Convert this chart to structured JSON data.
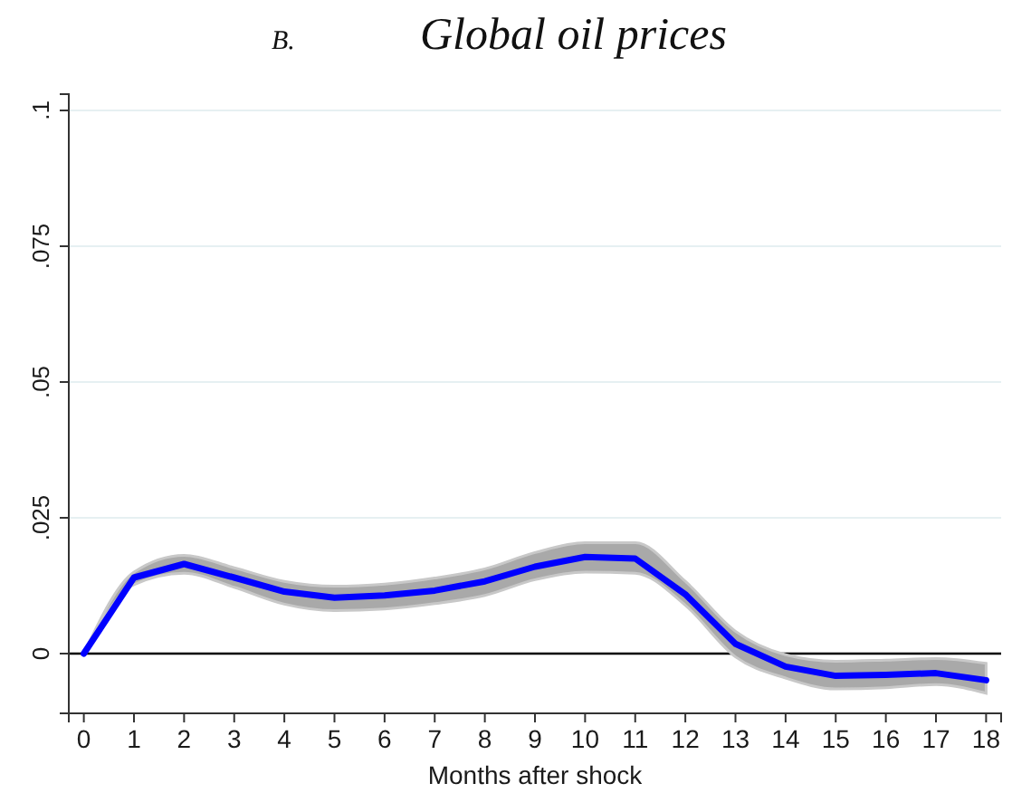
{
  "chart_data": {
    "type": "line",
    "title": "B. Global oil prices",
    "xlabel": "Months after shock",
    "x": [
      0,
      1,
      2,
      3,
      4,
      5,
      6,
      7,
      8,
      9,
      10,
      11,
      12,
      13,
      14,
      15,
      16,
      17,
      18
    ],
    "series": [
      {
        "color": "#0000ff",
        "values": [
          0,
          0.014,
          0.0165,
          0.014,
          0.0114,
          0.0103,
          0.0107,
          0.0116,
          0.0133,
          0.016,
          0.0178,
          0.0175,
          0.0109,
          0.0018,
          -0.0024,
          -0.0041,
          -0.0039,
          -0.0036,
          -0.0049
        ],
        "lower": [
          0,
          0.0127,
          0.0148,
          0.0122,
          0.0091,
          0.0079,
          0.0082,
          0.0092,
          0.0107,
          0.0136,
          0.015,
          0.0148,
          0.0089,
          -0.0006,
          -0.0045,
          -0.0065,
          -0.0063,
          -0.0057,
          -0.0073
        ],
        "upper": [
          0,
          0.015,
          0.0181,
          0.0158,
          0.0133,
          0.0124,
          0.0128,
          0.0139,
          0.0156,
          0.0186,
          0.0204,
          0.0204,
          0.0133,
          0.0041,
          -0.0002,
          -0.0014,
          -0.0012,
          -0.0009,
          -0.0018
        ]
      }
    ],
    "xlim": [
      -0.3,
      18.3
    ],
    "xticks": [
      0,
      1,
      2,
      3,
      4,
      5,
      6,
      7,
      8,
      9,
      10,
      11,
      12,
      13,
      14,
      15,
      16,
      17,
      18
    ],
    "ylim": [
      -0.011,
      0.103
    ],
    "yticks": [
      0,
      {
        "value": 0.025,
        "label": ".025"
      },
      {
        "value": 0.05,
        "label": ".05"
      },
      {
        "value": 0.075,
        "label": ".075"
      },
      {
        "value": 0.1,
        "label": ".1"
      }
    ],
    "grid": "y",
    "ref_lines": [
      {
        "axis": "y",
        "value": 0,
        "color": "#000000"
      }
    ]
  }
}
